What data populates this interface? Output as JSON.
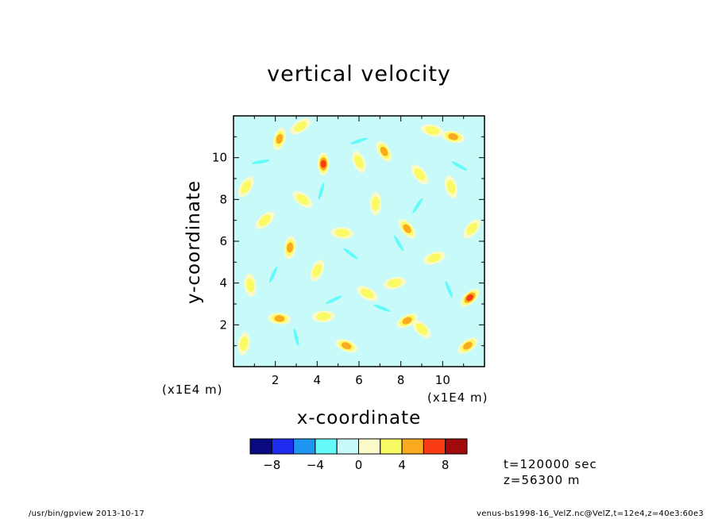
{
  "chart_data": {
    "type": "heatmap",
    "title": "vertical velocity",
    "xlabel": "x-coordinate",
    "ylabel": "y-coordinate",
    "x_scale_note": "(x1E4 m)",
    "y_scale_note": "(x1E4 m)",
    "xlim": [
      0,
      12
    ],
    "ylim": [
      0,
      12
    ],
    "x_ticks": [
      "2",
      "4",
      "6",
      "8",
      "10"
    ],
    "y_ticks": [
      "2",
      "4",
      "6",
      "8",
      "10"
    ],
    "colorbar": {
      "levels": [
        -10,
        -8,
        -6,
        -4,
        -2,
        0,
        2,
        4,
        6,
        8,
        10
      ],
      "tick_labels": [
        "−8",
        "−4",
        "0",
        "4",
        "8"
      ],
      "tick_values": [
        -8,
        -4,
        0,
        4,
        8
      ],
      "colors": [
        "#0a0a80",
        "#1e2cf0",
        "#1e96f0",
        "#64fafa",
        "#c8fafa",
        "#fafac8",
        "#fafa64",
        "#faaa1e",
        "#fa3c14",
        "#a00a0a"
      ]
    },
    "dominant_color": "#c8fafa",
    "features": [
      {
        "x": 4.3,
        "y": 9.7,
        "value": 6
      },
      {
        "x": 11.3,
        "y": 3.3,
        "value": 6
      },
      {
        "x": 2.2,
        "y": 2.3,
        "value": 5
      },
      {
        "x": 8.3,
        "y": 6.6,
        "value": 5
      },
      {
        "x": 2.7,
        "y": 5.7,
        "value": 5
      },
      {
        "x": 11.2,
        "y": 1.0,
        "value": 5
      },
      {
        "x": 10.5,
        "y": 11.0,
        "value": 5
      },
      {
        "x": 7.2,
        "y": 10.3,
        "value": 4
      },
      {
        "x": 2.2,
        "y": 10.9,
        "value": 4
      },
      {
        "x": 8.3,
        "y": 2.2,
        "value": 4
      },
      {
        "x": 5.4,
        "y": 1.0,
        "value": 4
      },
      {
        "x": 6.0,
        "y": 9.8,
        "value": 3
      },
      {
        "x": 4.0,
        "y": 4.6,
        "value": 3
      },
      {
        "x": 9.6,
        "y": 5.2,
        "value": 3
      },
      {
        "x": 6.4,
        "y": 3.5,
        "value": 3
      },
      {
        "x": 10.4,
        "y": 8.6,
        "value": 3
      },
      {
        "x": 0.6,
        "y": 8.6,
        "value": 3
      },
      {
        "x": 7.7,
        "y": 4.0,
        "value": 3
      },
      {
        "x": 3.3,
        "y": 8.0,
        "value": 3
      },
      {
        "x": 0.8,
        "y": 3.9,
        "value": 3
      },
      {
        "x": 11.4,
        "y": 6.6,
        "value": 3
      },
      {
        "x": 4.3,
        "y": 2.4,
        "value": 3
      },
      {
        "x": 9.0,
        "y": 1.8,
        "value": 3
      },
      {
        "x": 6.8,
        "y": 7.8,
        "value": 2
      },
      {
        "x": 1.5,
        "y": 7.0,
        "value": 2
      },
      {
        "x": 5.2,
        "y": 6.4,
        "value": 2
      },
      {
        "x": 8.9,
        "y": 9.2,
        "value": 2
      },
      {
        "x": 0.5,
        "y": 1.1,
        "value": 2
      },
      {
        "x": 3.2,
        "y": 11.5,
        "value": 2
      },
      {
        "x": 9.5,
        "y": 11.3,
        "value": 2
      },
      {
        "x": 7.9,
        "y": 5.9,
        "value": -3
      },
      {
        "x": 4.2,
        "y": 8.4,
        "value": -3
      },
      {
        "x": 4.8,
        "y": 3.2,
        "value": -3
      },
      {
        "x": 7.1,
        "y": 2.8,
        "value": -3
      },
      {
        "x": 10.3,
        "y": 3.7,
        "value": -3
      },
      {
        "x": 1.9,
        "y": 4.4,
        "value": -3
      },
      {
        "x": 6.0,
        "y": 10.8,
        "value": -3
      },
      {
        "x": 10.8,
        "y": 9.6,
        "value": -3
      },
      {
        "x": 3.0,
        "y": 1.4,
        "value": -3
      },
      {
        "x": 8.8,
        "y": 7.7,
        "value": -3
      },
      {
        "x": 1.3,
        "y": 9.8,
        "value": -3
      },
      {
        "x": 5.6,
        "y": 5.4,
        "value": -3
      }
    ]
  },
  "info": {
    "time": "t=120000 sec",
    "height": "z=56300 m"
  },
  "footer": {
    "left": "/usr/bin/gpview   2013-10-17",
    "right": "venus-bs1998-16_VelZ.nc@VelZ,t=12e4,z=40e3:60e3"
  }
}
